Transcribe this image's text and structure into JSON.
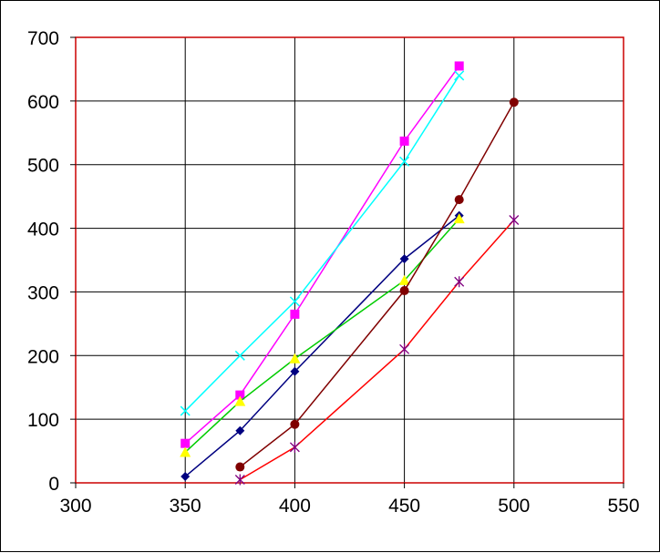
{
  "chart_data": {
    "type": "scatter",
    "title": "",
    "xlabel": "",
    "ylabel": "",
    "xlim": [
      300,
      550
    ],
    "ylim": [
      0,
      700
    ],
    "x_ticks": [
      300,
      350,
      400,
      450,
      500,
      550
    ],
    "y_ticks": [
      0,
      100,
      200,
      300,
      400,
      500,
      600,
      700
    ],
    "grid": true,
    "legend": "none",
    "plot_border_color": "#cc0000",
    "grid_color": "#000000",
    "series": [
      {
        "color": "#000080",
        "marker": "diamond",
        "x": [
          350,
          375,
          400,
          450,
          475
        ],
        "y": [
          10,
          82,
          175,
          352,
          420
        ]
      },
      {
        "color": "#ff00ff",
        "line_color": "#ff00ff",
        "marker": "square",
        "x": [
          350,
          375,
          400,
          450,
          475
        ],
        "y": [
          62,
          138,
          265,
          537,
          655
        ]
      },
      {
        "color": "#ffff00",
        "line_color": "#00cc00",
        "marker": "triangle",
        "x": [
          350,
          375,
          400,
          450,
          475
        ],
        "y": [
          48,
          128,
          195,
          318,
          415
        ]
      },
      {
        "color": "#00ffff",
        "line_color": "#00ffff",
        "marker": "x",
        "x": [
          350,
          375,
          400,
          450,
          475
        ],
        "y": [
          113,
          200,
          285,
          505,
          640
        ]
      },
      {
        "color": "#800000",
        "line_color": "#800000",
        "marker": "circle",
        "x": [
          375,
          400,
          450,
          475,
          500
        ],
        "y": [
          25,
          92,
          302,
          445,
          598
        ]
      },
      {
        "color": "#800080",
        "line_color": "#ff0000",
        "marker": "star",
        "x": [
          375,
          400,
          450,
          475,
          500
        ],
        "y": [
          5,
          56,
          210,
          316,
          413
        ]
      }
    ]
  }
}
